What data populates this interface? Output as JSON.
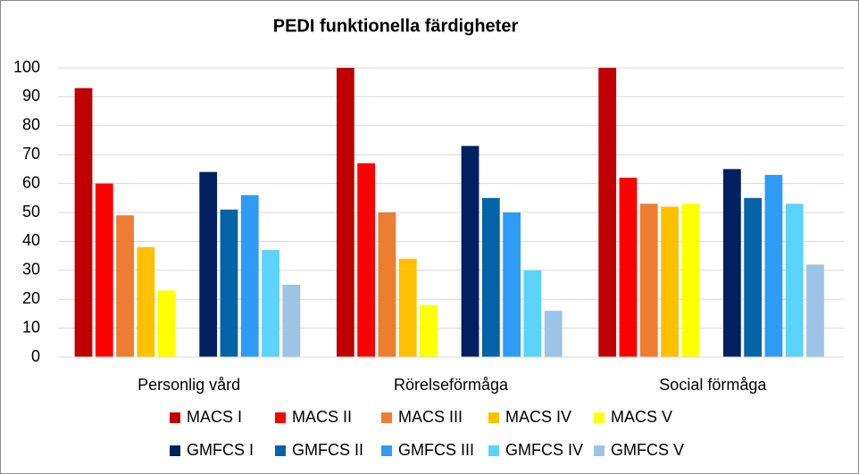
{
  "chart_data": {
    "type": "bar",
    "title": "PEDI funktionella färdigheter",
    "categories": [
      "Personlig vård",
      "Rörelseförmåga",
      "Social förmåga"
    ],
    "series": [
      {
        "name": "MACS I",
        "color": "#c00000",
        "values": [
          93,
          100,
          100
        ]
      },
      {
        "name": "MACS II",
        "color": "#ff0000",
        "values": [
          60,
          67,
          62
        ]
      },
      {
        "name": "MACS III",
        "color": "#ed7d31",
        "values": [
          49,
          50,
          53
        ]
      },
      {
        "name": "MACS IV",
        "color": "#ffc000",
        "values": [
          38,
          34,
          52
        ]
      },
      {
        "name": "MACS V",
        "color": "#ffff00",
        "values": [
          23,
          18,
          53
        ]
      },
      {
        "name": "GMFCS I",
        "color": "#002060",
        "values": [
          64,
          73,
          65
        ]
      },
      {
        "name": "GMFCS II",
        "color": "#0563a8",
        "values": [
          51,
          55,
          55
        ]
      },
      {
        "name": "GMFCS III",
        "color": "#2e9bf5",
        "values": [
          56,
          50,
          63
        ]
      },
      {
        "name": "GMFCS IV",
        "color": "#5cd3f8",
        "values": [
          37,
          30,
          53
        ]
      },
      {
        "name": "GMFCS V",
        "color": "#9dc3e6",
        "values": [
          25,
          16,
          32
        ]
      }
    ],
    "ylim": [
      0,
      100
    ],
    "yticks": [
      0,
      10,
      20,
      30,
      40,
      50,
      60,
      70,
      80,
      90,
      100
    ],
    "grid": true
  }
}
